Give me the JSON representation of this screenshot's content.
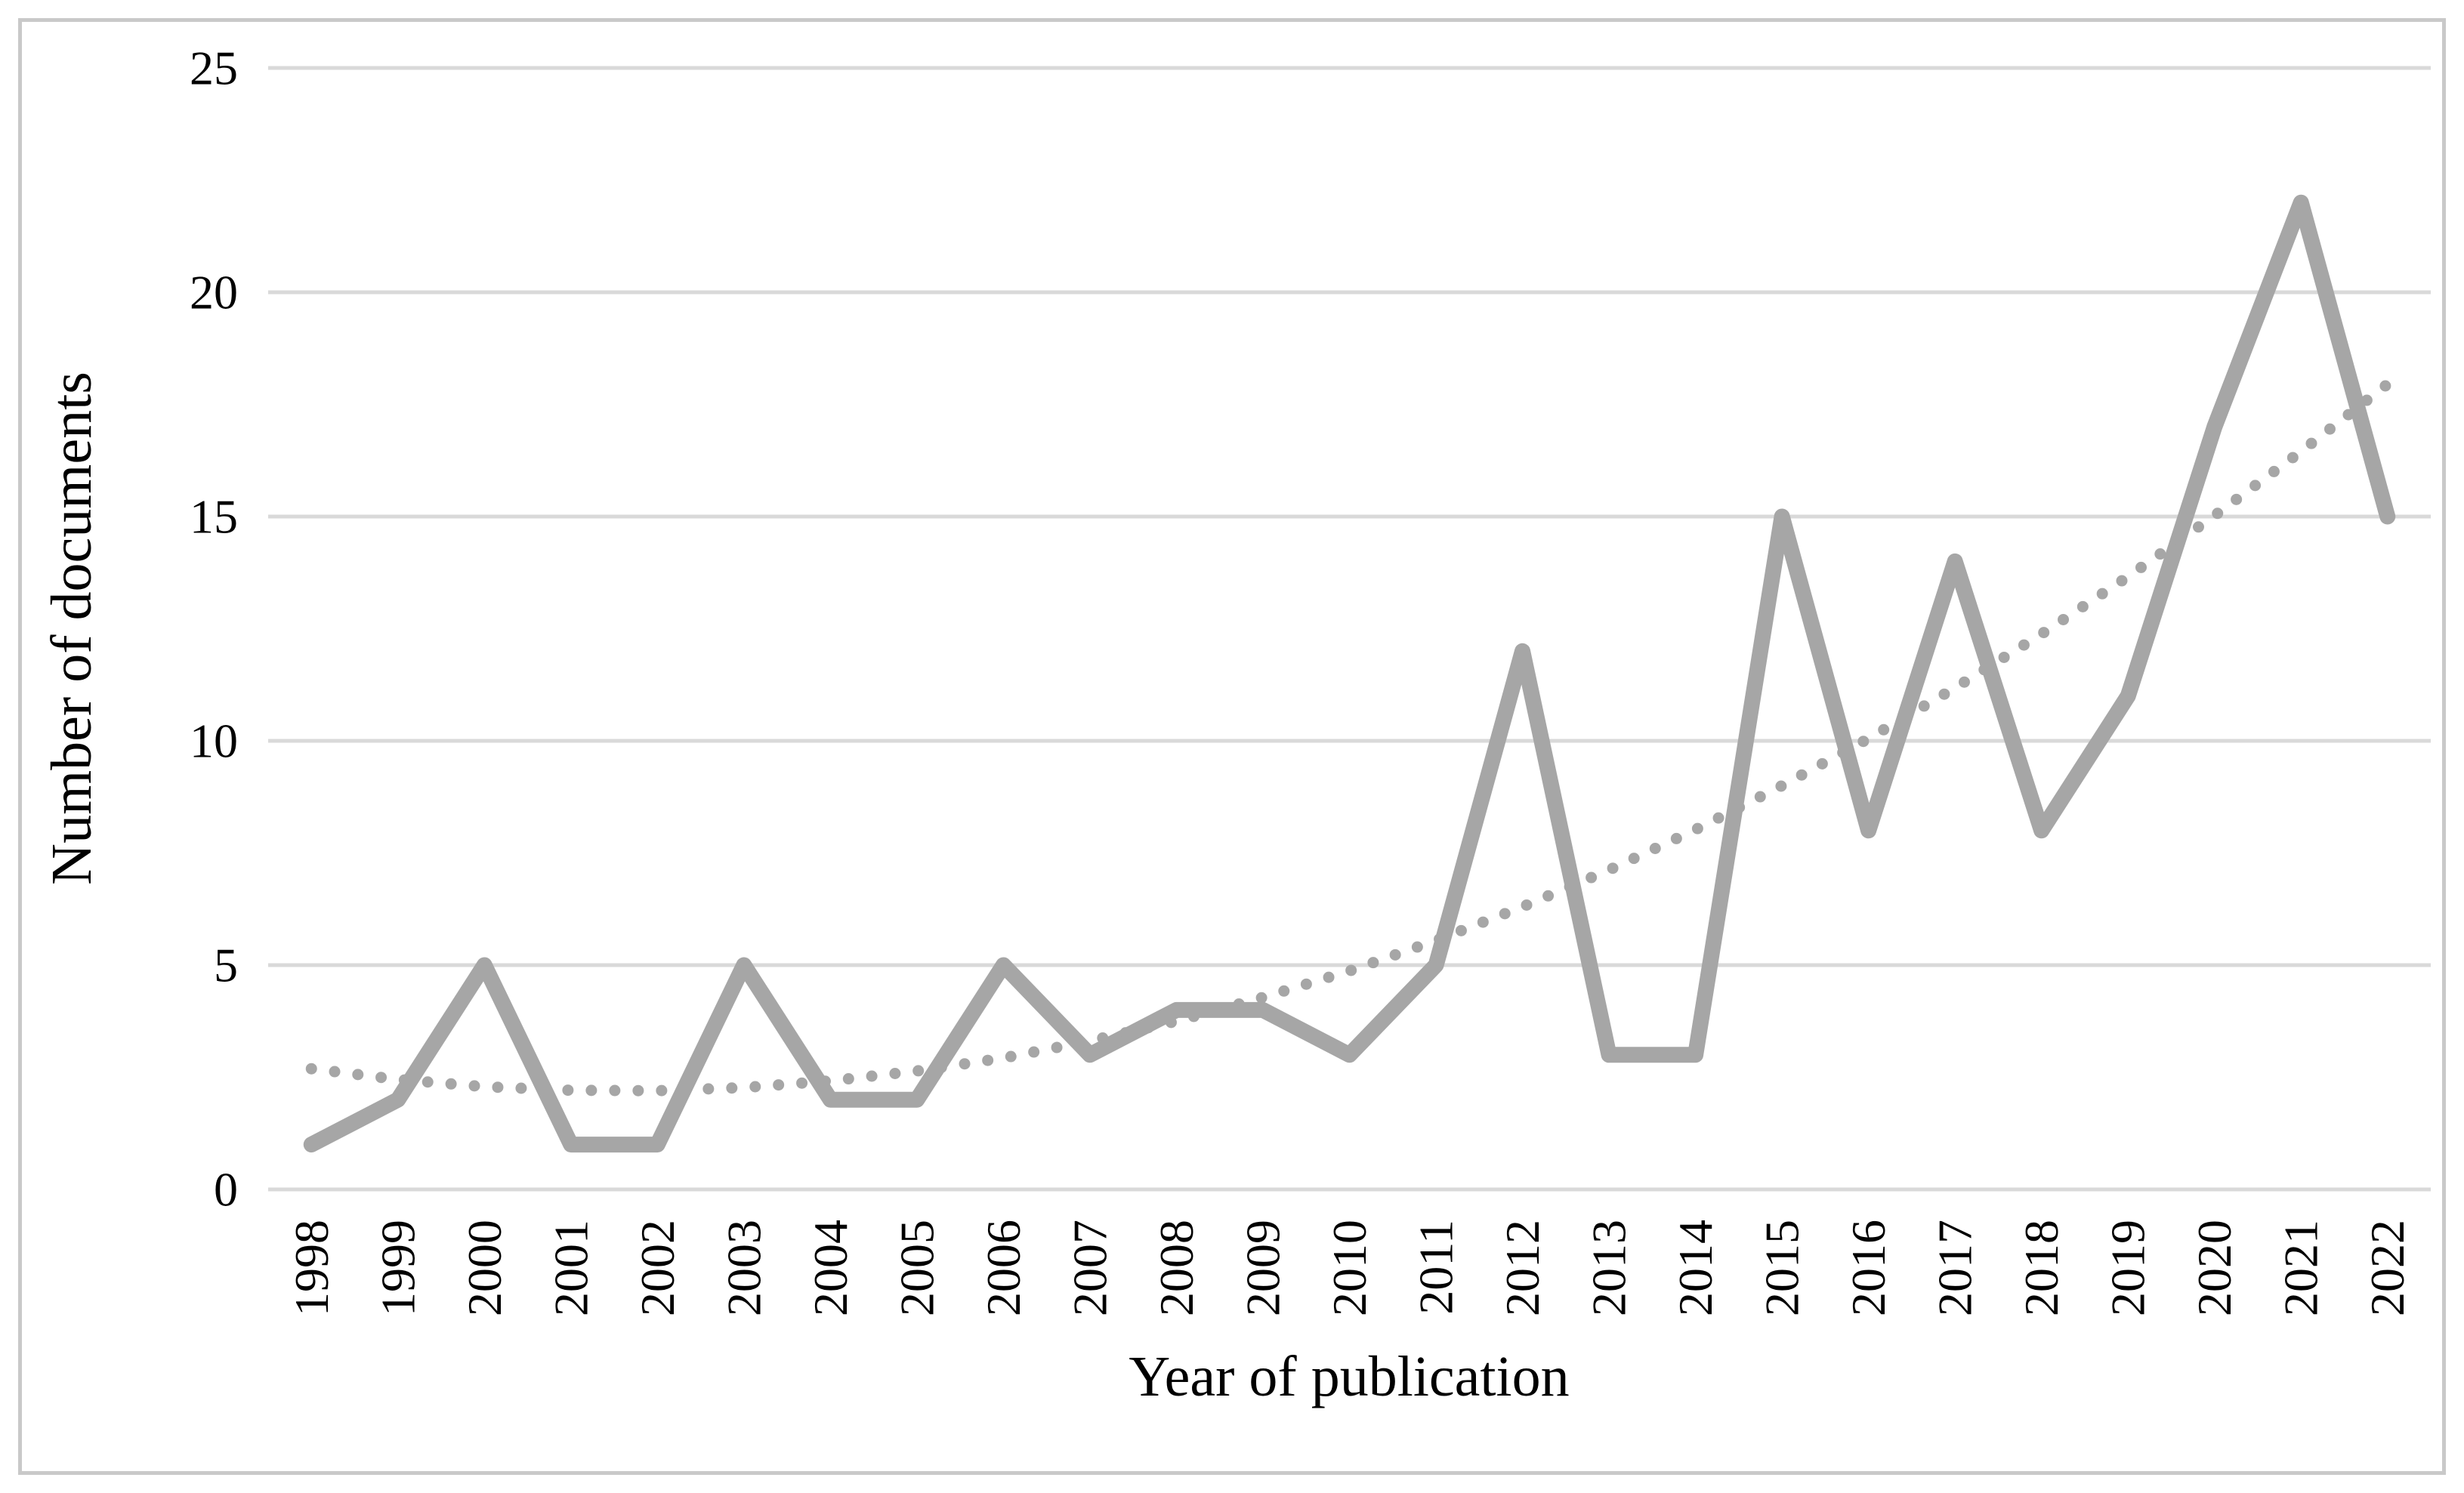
{
  "figure": {
    "background_color": "#ffffff",
    "frame_border_color": "#c9c9c9"
  },
  "chart_data": {
    "type": "line",
    "title": "",
    "xlabel": "Year of publication",
    "ylabel": "Number of documents",
    "categories": [
      "1998",
      "1999",
      "2000",
      "2001",
      "2002",
      "2003",
      "2004",
      "2005",
      "2006",
      "2007",
      "2008",
      "2009",
      "2010",
      "2011",
      "2012",
      "2013",
      "2014",
      "2015",
      "2016",
      "2017",
      "2018",
      "2019",
      "2020",
      "2021",
      "2022"
    ],
    "series": [
      {
        "name": "Number of documents",
        "style": "solid",
        "color": "#a6a6a6",
        "values": [
          1,
          2,
          5,
          1,
          1,
          5,
          2,
          2,
          5,
          3,
          4,
          4,
          3,
          5,
          12,
          3,
          3,
          15,
          8,
          14,
          8,
          11,
          17,
          22,
          15
        ]
      },
      {
        "name": "Polynomial trendline (order 2)",
        "style": "dotted",
        "color": "#a6a6a6",
        "values": [
          2.69,
          2.45,
          2.29,
          2.21,
          2.2,
          2.27,
          2.42,
          2.64,
          2.93,
          3.31,
          3.75,
          4.28,
          4.87,
          5.55,
          6.3,
          7.12,
          8.02,
          9.0,
          10.05,
          11.18,
          12.38,
          13.66,
          15.02,
          16.45,
          17.95
        ]
      }
    ],
    "ylim": [
      0,
      25
    ],
    "yticks": [
      "0",
      "5",
      "10",
      "15",
      "20",
      "25"
    ],
    "x_tick_rotation": -90,
    "grid": "horizontal",
    "gridline_color": "#d9d9d9",
    "legend": "none"
  }
}
